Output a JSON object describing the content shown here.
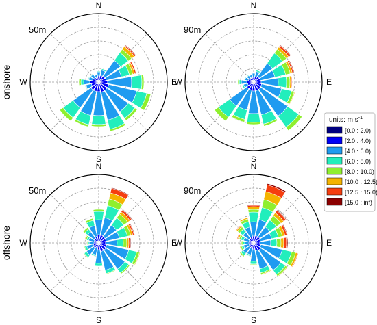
{
  "chart_data": {
    "type": "windrose",
    "directions": [
      "N",
      "NNE",
      "NE",
      "ENE",
      "E",
      "ESE",
      "SE",
      "SSE",
      "S",
      "SSW",
      "SW",
      "WSW",
      "W",
      "WNW",
      "NW",
      "NNW"
    ],
    "compass_labels": {
      "N": "N",
      "E": "E",
      "S": "S",
      "W": "W"
    },
    "row_labels": [
      "onshore",
      "offshore"
    ],
    "legend": {
      "title": "units: m s",
      "title_sup": "-1",
      "bins": [
        "[0.0 : 2.0)",
        "[2.0 : 4.0)",
        "[4.0 : 6.0)",
        "[6.0 : 8.0)",
        "[8.0 : 10.0)",
        "[10.0 : 12.5)",
        "[12.5 : 15.0)",
        "[15.0 : inf)"
      ],
      "colors": [
        "#00007f",
        "#0000f5",
        "#1f9bf0",
        "#22eebc",
        "#8fef2e",
        "#f4b400",
        "#f53e0f",
        "#8b0000"
      ]
    },
    "grid": true,
    "panels": [
      {
        "label": "50m",
        "row": 0,
        "rmax": 10,
        "stacks": [
          [
            0.3,
            0.6,
            0.6,
            0.1,
            0,
            0,
            0,
            0
          ],
          [
            0.3,
            0.7,
            0.8,
            0.2,
            0,
            0,
            0,
            0
          ],
          [
            0.3,
            0.8,
            2.8,
            1.4,
            0.6,
            0.5,
            0.2,
            0.1
          ],
          [
            0.3,
            0.8,
            2.3,
            1.2,
            0.5,
            0.3,
            0.2,
            0
          ],
          [
            0.3,
            1.0,
            3.5,
            1.5,
            0.3,
            0,
            0,
            0
          ],
          [
            0.3,
            1.2,
            4.2,
            1.5,
            0.6,
            0,
            0,
            0
          ],
          [
            0.3,
            1.2,
            3.8,
            1.2,
            0.4,
            0,
            0,
            0
          ],
          [
            0.3,
            1.2,
            4.2,
            1.4,
            0.3,
            0,
            0,
            0
          ],
          [
            0.3,
            1.1,
            3.5,
            1.3,
            0.3,
            0,
            0,
            0
          ],
          [
            0.3,
            1.1,
            3.6,
            1.4,
            0.3,
            0,
            0,
            0
          ],
          [
            0.3,
            1.1,
            3.2,
            1.8,
            0.6,
            0,
            0,
            0
          ],
          [
            0.3,
            0.8,
            0.8,
            0.1,
            0,
            0,
            0,
            0
          ],
          [
            0.3,
            1.0,
            0.9,
            0.4,
            0.3,
            0,
            0,
            0
          ],
          [
            0.3,
            0.6,
            0.6,
            0.1,
            0,
            0,
            0,
            0
          ],
          [
            0.3,
            0.5,
            0.6,
            0.1,
            0,
            0,
            0,
            0
          ],
          [
            0.3,
            0.4,
            0.4,
            0,
            0,
            0,
            0,
            0
          ]
        ]
      },
      {
        "label": "90m",
        "row": 0,
        "rmax": 10,
        "stacks": [
          [
            0.3,
            0.4,
            0.6,
            0.1,
            0,
            0,
            0,
            0
          ],
          [
            0.3,
            0.5,
            0.8,
            0.2,
            0,
            0,
            0,
            0
          ],
          [
            0.3,
            0.7,
            2.4,
            1.8,
            0.7,
            0.4,
            0.3,
            0.1
          ],
          [
            0.3,
            0.7,
            2.2,
            1.6,
            0.7,
            0.3,
            0.2,
            0.1
          ],
          [
            0.3,
            0.8,
            2.5,
            1.2,
            0.5,
            0.2,
            0.1,
            0
          ],
          [
            0.3,
            0.9,
            3.0,
            1.5,
            0.4,
            0.1,
            0,
            0
          ],
          [
            0.3,
            1.0,
            4.8,
            2.0,
            0.6,
            0,
            0,
            0
          ],
          [
            0.3,
            1.0,
            3.6,
            1.4,
            0.3,
            0,
            0,
            0
          ],
          [
            0.3,
            1.0,
            3.3,
            1.3,
            0.3,
            0,
            0,
            0
          ],
          [
            0.3,
            0.9,
            3.0,
            1.4,
            0.4,
            0,
            0,
            0
          ],
          [
            0.3,
            0.9,
            3.1,
            2.0,
            0.7,
            0,
            0,
            0
          ],
          [
            0.3,
            0.6,
            0.6,
            0.2,
            0,
            0,
            0,
            0
          ],
          [
            0.3,
            0.7,
            0.8,
            0.3,
            0.2,
            0,
            0,
            0
          ],
          [
            0.3,
            0.5,
            0.5,
            0.1,
            0,
            0,
            0,
            0
          ],
          [
            0.3,
            0.4,
            0.5,
            0.1,
            0,
            0,
            0,
            0
          ],
          [
            0.3,
            0.4,
            0.4,
            0,
            0,
            0,
            0,
            0
          ]
        ]
      },
      {
        "label": "50m",
        "row": 1,
        "rmax": 10,
        "stacks": [
          [
            0.3,
            0.9,
            2.2,
            1.2,
            0.3,
            0,
            0,
            0
          ],
          [
            0.3,
            0.9,
            2.6,
            1.8,
            1.0,
            0.9,
            0.7,
            0.1
          ],
          [
            0.3,
            0.8,
            2.1,
            1.3,
            0.7,
            0.4,
            0.3,
            0.1
          ],
          [
            0.3,
            0.8,
            2.0,
            1.2,
            0.5,
            0.3,
            0.2,
            0.1
          ],
          [
            0.3,
            0.7,
            1.7,
            0.9,
            0.5,
            0.3,
            0.2,
            0.1
          ],
          [
            0.3,
            0.9,
            3.3,
            1.2,
            0.4,
            0.1,
            0,
            0
          ],
          [
            0.3,
            1.0,
            3.4,
            0.7,
            0.2,
            0,
            0,
            0
          ],
          [
            0.3,
            1.0,
            2.8,
            0.5,
            0.1,
            0,
            0,
            0
          ],
          [
            0.3,
            0.7,
            2.0,
            0.4,
            0,
            0,
            0,
            0
          ],
          [
            0.3,
            0.5,
            1.0,
            0.2,
            0,
            0,
            0,
            0
          ],
          [
            0.3,
            0.6,
            1.3,
            0.4,
            0.1,
            0,
            0,
            0
          ],
          [
            0.3,
            0.5,
            1.0,
            0.3,
            0.1,
            0,
            0,
            0
          ],
          [
            0.3,
            0.4,
            0.7,
            0.2,
            0.1,
            0,
            0,
            0
          ],
          [
            0.3,
            0.4,
            0.8,
            0.3,
            0.2,
            0.1,
            0,
            0
          ],
          [
            0.3,
            0.5,
            1.2,
            0.5,
            0.3,
            0,
            0,
            0
          ],
          [
            0.3,
            0.7,
            1.6,
            0.8,
            0.3,
            0,
            0,
            0
          ]
        ]
      },
      {
        "label": "90m",
        "row": 1,
        "rmax": 10,
        "stacks": [
          [
            0.3,
            0.7,
            2.1,
            1.4,
            0.4,
            0.4,
            0.2,
            0.1
          ],
          [
            0.3,
            0.8,
            2.4,
            1.8,
            1.2,
            1.2,
            1.0,
            0.2
          ],
          [
            0.3,
            0.8,
            1.8,
            1.2,
            0.8,
            0.5,
            0.4,
            0.1
          ],
          [
            0.3,
            0.7,
            1.7,
            1.0,
            0.6,
            0.4,
            0.3,
            0.1
          ],
          [
            0.3,
            0.6,
            1.6,
            0.9,
            0.6,
            0.4,
            0.4,
            0.2
          ],
          [
            0.3,
            0.8,
            3.2,
            1.4,
            0.6,
            0.3,
            0.1,
            0
          ],
          [
            0.3,
            1.0,
            3.6,
            0.8,
            0.3,
            0.1,
            0,
            0
          ],
          [
            0.3,
            0.9,
            2.7,
            0.6,
            0.2,
            0.1,
            0,
            0
          ],
          [
            0.3,
            0.6,
            1.8,
            0.4,
            0.1,
            0,
            0,
            0
          ],
          [
            0.3,
            0.5,
            1.0,
            0.2,
            0,
            0,
            0,
            0
          ],
          [
            0.3,
            0.5,
            1.1,
            0.4,
            0.2,
            0,
            0,
            0
          ],
          [
            0.3,
            0.4,
            0.8,
            0.3,
            0.2,
            0.1,
            0,
            0
          ],
          [
            0.3,
            0.4,
            0.6,
            0.3,
            0.2,
            0.1,
            0,
            0
          ],
          [
            0.3,
            0.4,
            0.8,
            0.4,
            0.3,
            0.2,
            0.1,
            0
          ],
          [
            0.3,
            0.5,
            1.1,
            0.6,
            0.4,
            0.2,
            0.1,
            0
          ],
          [
            0.3,
            0.6,
            1.5,
            0.8,
            0.4,
            0.2,
            0,
            0
          ]
        ]
      }
    ]
  }
}
